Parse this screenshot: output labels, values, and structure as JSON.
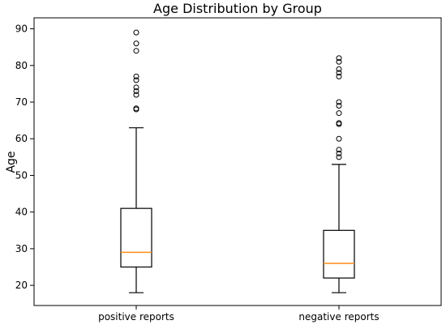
{
  "chart_data": {
    "type": "boxplot",
    "title": "Age Distribution by Group",
    "xlabel": "",
    "ylabel": "Age",
    "ylim": [
      14.5,
      93
    ],
    "yticks": [
      20,
      30,
      40,
      50,
      60,
      70,
      80,
      90
    ],
    "grid": false,
    "categories": [
      "positive reports",
      "negative reports"
    ],
    "series": [
      {
        "whisker_low": 18,
        "q1": 25,
        "median": 29,
        "q3": 41,
        "whisker_high": 63,
        "outliers": [
          68,
          68.3,
          72,
          73,
          74,
          76,
          77,
          84,
          86,
          89
        ],
        "median_color": "#ff8c1a"
      },
      {
        "whisker_low": 18,
        "q1": 22,
        "median": 26,
        "q3": 35,
        "whisker_high": 53,
        "outliers": [
          55,
          56,
          57,
          60,
          64,
          64.3,
          67,
          69,
          70,
          77,
          78,
          79,
          81,
          82
        ],
        "median_color": "#ff8c1a"
      }
    ]
  }
}
